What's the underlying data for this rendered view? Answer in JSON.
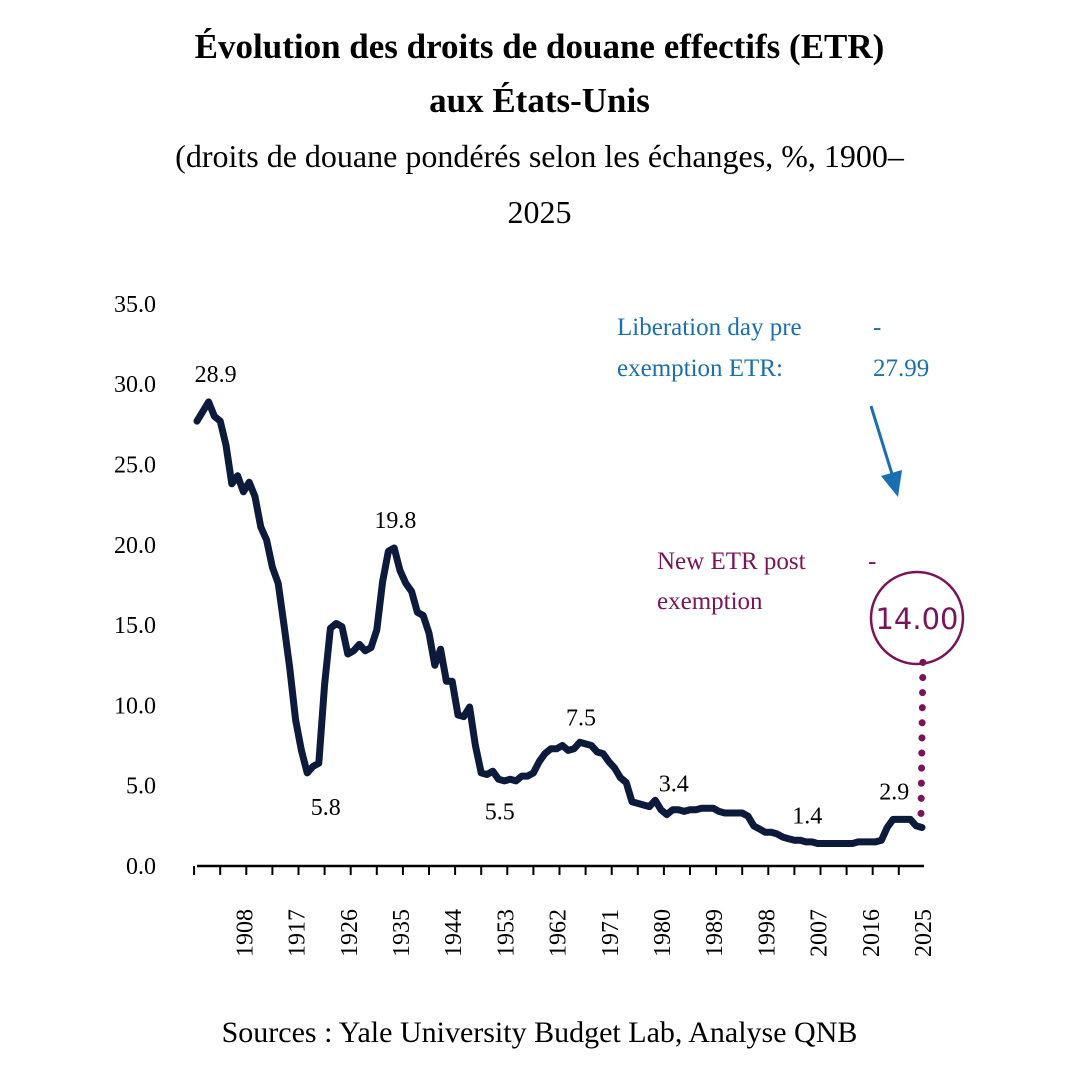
{
  "title": {
    "line1": "Évolution des droits de douane effectifs (ETR)",
    "line2": "aux États-Unis"
  },
  "subtitle": {
    "line1": "(droits de douane pondérés selon les échanges, %, 1900–",
    "line2": "2025"
  },
  "source": "Sources : Yale University Budget Lab, Analyse QNB",
  "colors": {
    "line": "#0c1a3c",
    "liberation": "#1a6fb0",
    "new_etr": "#7a1358"
  },
  "chart_data": {
    "type": "line",
    "title": "Évolution des droits de douane effectifs (ETR) aux États-Unis",
    "ylim": [
      0,
      35
    ],
    "y_ticks": [
      "0.0",
      "5.0",
      "10.0",
      "15.0",
      "20.0",
      "25.0",
      "30.0",
      "35.0"
    ],
    "x_ticks": [
      "1908",
      "1917",
      "1926",
      "1935",
      "1944",
      "1953",
      "1962",
      "1971",
      "1980",
      "1989",
      "1998",
      "2007",
      "2016",
      "2025"
    ],
    "xlim": [
      1900,
      2025
    ],
    "grid": false,
    "series": [
      {
        "values": [
          [
            1900,
            27.7
          ],
          [
            1901,
            28.3
          ],
          [
            1902,
            28.9
          ],
          [
            1903,
            28.0
          ],
          [
            1904,
            27.7
          ],
          [
            1905,
            26.2
          ],
          [
            1906,
            23.8
          ],
          [
            1907,
            24.3
          ],
          [
            1908,
            23.3
          ],
          [
            1909,
            23.9
          ],
          [
            1910,
            23.0
          ],
          [
            1911,
            21.1
          ],
          [
            1912,
            20.3
          ],
          [
            1913,
            18.6
          ],
          [
            1914,
            17.6
          ],
          [
            1915,
            15.0
          ],
          [
            1916,
            12.3
          ],
          [
            1917,
            9.1
          ],
          [
            1918,
            7.2
          ],
          [
            1919,
            5.8
          ],
          [
            1920,
            6.2
          ],
          [
            1921,
            6.4
          ],
          [
            1922,
            11.3
          ],
          [
            1923,
            14.8
          ],
          [
            1924,
            15.1
          ],
          [
            1925,
            14.9
          ],
          [
            1926,
            13.2
          ],
          [
            1927,
            13.4
          ],
          [
            1928,
            13.8
          ],
          [
            1929,
            13.4
          ],
          [
            1930,
            13.6
          ],
          [
            1931,
            14.7
          ],
          [
            1932,
            17.7
          ],
          [
            1933,
            19.6
          ],
          [
            1934,
            19.8
          ],
          [
            1935,
            18.4
          ],
          [
            1936,
            17.6
          ],
          [
            1937,
            17.1
          ],
          [
            1938,
            15.8
          ],
          [
            1939,
            15.6
          ],
          [
            1940,
            14.5
          ],
          [
            1941,
            12.5
          ],
          [
            1942,
            13.5
          ],
          [
            1943,
            11.5
          ],
          [
            1944,
            11.5
          ],
          [
            1945,
            9.4
          ],
          [
            1946,
            9.3
          ],
          [
            1947,
            9.9
          ],
          [
            1948,
            7.5
          ],
          [
            1949,
            5.8
          ],
          [
            1950,
            5.7
          ],
          [
            1951,
            5.9
          ],
          [
            1952,
            5.4
          ],
          [
            1953,
            5.3
          ],
          [
            1954,
            5.4
          ],
          [
            1955,
            5.3
          ],
          [
            1956,
            5.6
          ],
          [
            1957,
            5.6
          ],
          [
            1958,
            5.8
          ],
          [
            1959,
            6.5
          ],
          [
            1960,
            7.0
          ],
          [
            1961,
            7.3
          ],
          [
            1962,
            7.3
          ],
          [
            1963,
            7.5
          ],
          [
            1964,
            7.2
          ],
          [
            1965,
            7.3
          ],
          [
            1966,
            7.7
          ],
          [
            1967,
            7.6
          ],
          [
            1968,
            7.5
          ],
          [
            1969,
            7.1
          ],
          [
            1970,
            7.0
          ],
          [
            1971,
            6.5
          ],
          [
            1972,
            6.1
          ],
          [
            1973,
            5.5
          ],
          [
            1974,
            5.2
          ],
          [
            1975,
            4.0
          ],
          [
            1976,
            3.9
          ],
          [
            1977,
            3.8
          ],
          [
            1978,
            3.7
          ],
          [
            1979,
            4.1
          ],
          [
            1980,
            3.5
          ],
          [
            1981,
            3.2
          ],
          [
            1982,
            3.5
          ],
          [
            1983,
            3.5
          ],
          [
            1984,
            3.4
          ],
          [
            1985,
            3.5
          ],
          [
            1986,
            3.5
          ],
          [
            1987,
            3.6
          ],
          [
            1988,
            3.6
          ],
          [
            1989,
            3.6
          ],
          [
            1990,
            3.4
          ],
          [
            1991,
            3.3
          ],
          [
            1992,
            3.3
          ],
          [
            1993,
            3.3
          ],
          [
            1994,
            3.3
          ],
          [
            1995,
            3.1
          ],
          [
            1996,
            2.5
          ],
          [
            1997,
            2.3
          ],
          [
            1998,
            2.1
          ],
          [
            1999,
            2.1
          ],
          [
            2000,
            2.0
          ],
          [
            2001,
            1.8
          ],
          [
            2002,
            1.7
          ],
          [
            2003,
            1.6
          ],
          [
            2004,
            1.6
          ],
          [
            2005,
            1.5
          ],
          [
            2006,
            1.5
          ],
          [
            2007,
            1.4
          ],
          [
            2008,
            1.4
          ],
          [
            2009,
            1.4
          ],
          [
            2010,
            1.4
          ],
          [
            2011,
            1.4
          ],
          [
            2012,
            1.4
          ],
          [
            2013,
            1.4
          ],
          [
            2014,
            1.5
          ],
          [
            2015,
            1.5
          ],
          [
            2016,
            1.5
          ],
          [
            2017,
            1.5
          ],
          [
            2018,
            1.6
          ],
          [
            2019,
            2.4
          ],
          [
            2020,
            2.9
          ],
          [
            2021,
            2.9
          ],
          [
            2022,
            2.9
          ],
          [
            2023,
            2.9
          ],
          [
            2024,
            2.5
          ],
          [
            2025,
            2.4
          ]
        ]
      }
    ],
    "data_labels": [
      {
        "x": 1902,
        "y": 28.9,
        "text": "28.9",
        "pos": "above"
      },
      {
        "x": 1921,
        "y": 5.8,
        "text": "5.8",
        "pos": "below"
      },
      {
        "x": 1933,
        "y": 19.8,
        "text": "19.8",
        "pos": "above"
      },
      {
        "x": 1951,
        "y": 5.5,
        "text": "5.5",
        "pos": "below"
      },
      {
        "x": 1965,
        "y": 7.5,
        "text": "7.5",
        "pos": "above"
      },
      {
        "x": 1981,
        "y": 3.4,
        "text": "3.4",
        "pos": "above"
      },
      {
        "x": 2004,
        "y": 1.4,
        "text": "1.4",
        "pos": "above"
      },
      {
        "x": 2019,
        "y": 2.9,
        "text": "2.9",
        "pos": "above"
      }
    ],
    "annotations": {
      "liberation_day": {
        "label_line1": "Liberation day pre",
        "label_line2": "exemption ETR:",
        "dash": "-",
        "value": "27.99"
      },
      "new_etr": {
        "label_line1": "New ETR post",
        "label_line2": "exemption",
        "dash": "-",
        "value": "14.00",
        "y": 14.0
      }
    }
  }
}
